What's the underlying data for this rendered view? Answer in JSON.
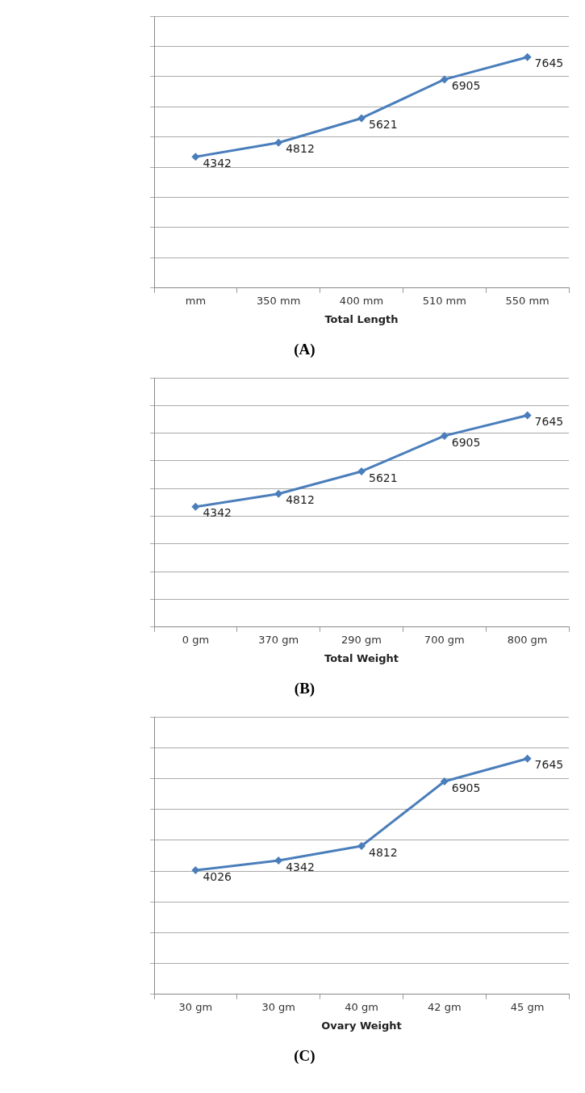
{
  "chart_data": [
    {
      "type": "line",
      "xlabel": "Total Length",
      "categories": [
        "mm",
        "350 mm",
        "400 mm",
        "510 mm",
        "550 mm"
      ],
      "values": [
        4342,
        4812,
        5621,
        6905,
        7645
      ],
      "color": "#4a7ebb",
      "marker": "diamond",
      "data_labels": true,
      "grid": "y",
      "tick_labels": "x",
      "ylim": [
        0,
        9000
      ],
      "yticks": [
        {
          "value": 0,
          "label": null
        },
        {
          "value": 1000,
          "label": null
        },
        {
          "value": 2000,
          "label": null
        },
        {
          "value": 3000,
          "label": null
        },
        {
          "value": 4000,
          "label": null
        },
        {
          "value": 5000,
          "label": null
        },
        {
          "value": 6000,
          "label": null
        },
        {
          "value": 7000,
          "label": null
        },
        {
          "value": 8000,
          "label": null
        },
        {
          "value": 9000,
          "label": null
        }
      ],
      "annotations": [
        "(A)"
      ]
    },
    {
      "type": "line",
      "xlabel": "Total Weight",
      "categories": [
        "0 gm",
        "370 gm",
        "290 gm",
        "700 gm",
        "800 gm"
      ],
      "values": [
        4342,
        4812,
        5621,
        6905,
        7645
      ],
      "color": "#4a7ebb",
      "marker": "diamond",
      "data_labels": true,
      "grid": "y",
      "tick_labels": "x",
      "ylim": [
        0,
        9000
      ],
      "yticks": [
        {
          "value": 0,
          "label": null
        },
        {
          "value": 1000,
          "label": null
        },
        {
          "value": 2000,
          "label": null
        },
        {
          "value": 3000,
          "label": null
        },
        {
          "value": 4000,
          "label": null
        },
        {
          "value": 5000,
          "label": null
        },
        {
          "value": 6000,
          "label": null
        },
        {
          "value": 7000,
          "label": null
        },
        {
          "value": 8000,
          "label": null
        },
        {
          "value": 9000,
          "label": null
        }
      ],
      "annotations": [
        "(B)"
      ]
    },
    {
      "type": "line",
      "xlabel": "Ovary Weight",
      "categories": [
        "30 gm",
        "30 gm",
        "40 gm",
        "42 gm",
        "45 gm"
      ],
      "values": [
        4026,
        4342,
        4812,
        6905,
        7645
      ],
      "color": "#4a7ebb",
      "marker": "diamond",
      "data_labels": true,
      "grid": "y",
      "tick_labels": "x",
      "ylim": [
        0,
        9000
      ],
      "yticks": [
        {
          "value": 0,
          "label": null
        },
        {
          "value": 1000,
          "label": null
        },
        {
          "value": 2000,
          "label": null
        },
        {
          "value": 3000,
          "label": null
        },
        {
          "value": 4000,
          "label": null
        },
        {
          "value": 5000,
          "label": null
        },
        {
          "value": 6000,
          "label": null
        },
        {
          "value": 7000,
          "label": null
        },
        {
          "value": 8000,
          "label": null
        },
        {
          "value": 9000,
          "label": null
        }
      ],
      "annotations": [
        "(C)"
      ]
    }
  ]
}
